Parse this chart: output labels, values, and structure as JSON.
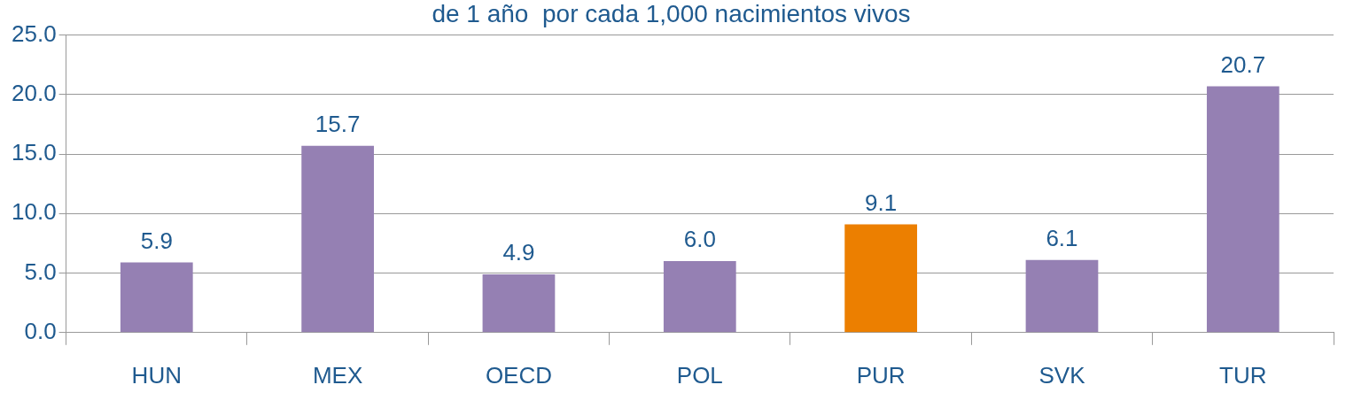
{
  "chart_data": {
    "type": "bar",
    "title": "de 1 año  por cada 1,000 nacimientos vivos",
    "categories": [
      "HUN",
      "MEX",
      "OECD",
      "POL",
      "PUR",
      "SVK",
      "TUR"
    ],
    "values": [
      5.9,
      15.7,
      4.9,
      6.0,
      9.1,
      6.1,
      20.7
    ],
    "colors": [
      "#9580b3",
      "#9580b3",
      "#9580b3",
      "#9580b3",
      "#ec7f00",
      "#9580b3",
      "#9580b3"
    ],
    "value_labels": [
      "5.9",
      "15.7",
      "4.9",
      "6.0",
      "9.1",
      "6.1",
      "20.7"
    ],
    "ylim": [
      0,
      25
    ],
    "yticks": [
      {
        "value": 0,
        "label": "0.0"
      },
      {
        "value": 5,
        "label": "5.0"
      },
      {
        "value": 10,
        "label": "10.0"
      },
      {
        "value": 15,
        "label": "15.0"
      },
      {
        "value": 20,
        "label": "20.0"
      },
      {
        "value": 25,
        "label": "25.0"
      }
    ],
    "grid": "y"
  }
}
